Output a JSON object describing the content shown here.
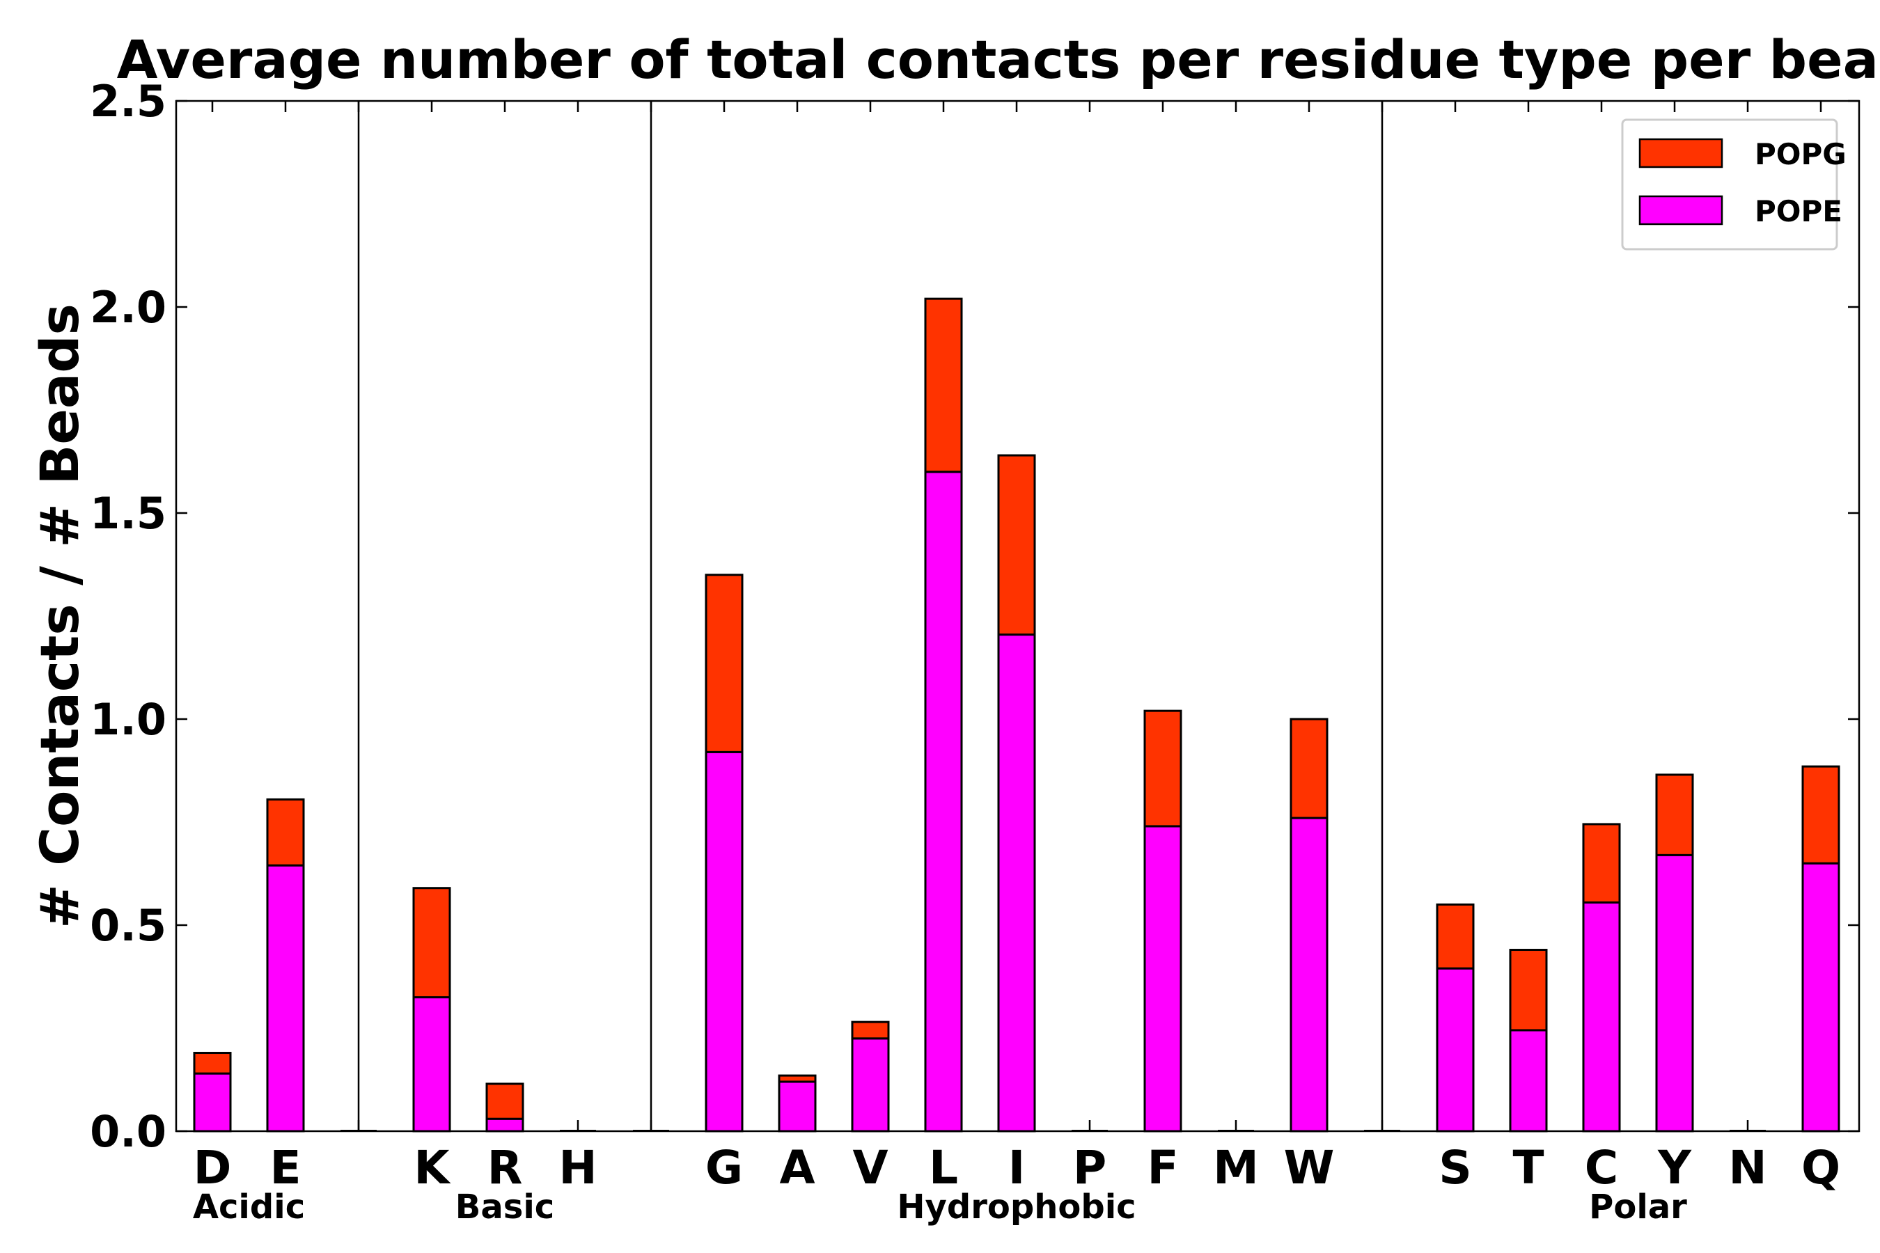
{
  "chart_data": {
    "type": "bar",
    "stacked": true,
    "title": "Average number of total contacts per residue type per bead",
    "xlabel": "",
    "ylabel": "# Contacts / # Beads",
    "ylim": [
      0,
      2.5
    ],
    "yticks": [
      "0.0",
      "0.5",
      "1.0",
      "1.5",
      "2.0",
      "2.5"
    ],
    "categories": [
      "D",
      "E",
      "K",
      "R",
      "H",
      "G",
      "A",
      "V",
      "L",
      "I",
      "P",
      "F",
      "M",
      "W",
      "S",
      "T",
      "C",
      "Y",
      "N",
      "Q"
    ],
    "groups": [
      {
        "name": "Acidic",
        "members": [
          "D",
          "E"
        ]
      },
      {
        "name": "Basic",
        "members": [
          "K",
          "R",
          "H"
        ]
      },
      {
        "name": "Hydrophobic",
        "members": [
          "G",
          "A",
          "V",
          "L",
          "I",
          "P",
          "F",
          "M",
          "W"
        ]
      },
      {
        "name": "Polar",
        "members": [
          "S",
          "T",
          "C",
          "Y",
          "N",
          "Q"
        ]
      }
    ],
    "series": [
      {
        "name": "POPE",
        "color": "#ff00ff",
        "values": [
          0.14,
          0.645,
          0.325,
          0.03,
          0.0,
          0.92,
          0.12,
          0.225,
          1.6,
          1.205,
          0.0,
          0.74,
          0.0,
          0.76,
          0.395,
          0.245,
          0.555,
          0.67,
          0.0,
          0.65
        ]
      },
      {
        "name": "POPG",
        "color": "#ff3300",
        "values": [
          0.05,
          0.16,
          0.265,
          0.085,
          0.0,
          0.43,
          0.015,
          0.04,
          0.42,
          0.435,
          0.0,
          0.28,
          0.0,
          0.24,
          0.155,
          0.195,
          0.19,
          0.195,
          0.0,
          0.235
        ]
      }
    ],
    "legend": {
      "position": "top-right",
      "entries": [
        "POPG",
        "POPE"
      ]
    }
  }
}
